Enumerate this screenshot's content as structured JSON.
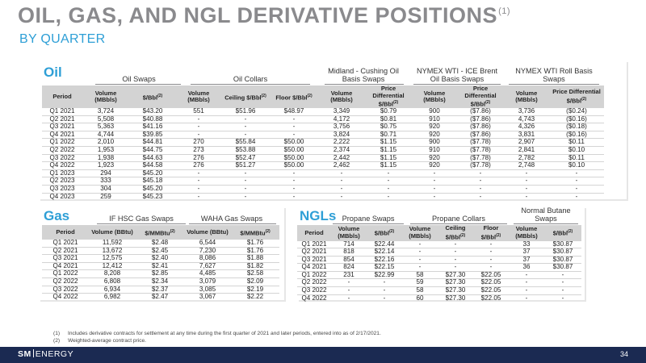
{
  "page": {
    "title": "OIL, GAS, AND NGL DERIVATIVE POSITIONS",
    "title_sup": "(1)",
    "subtitle": "BY QUARTER",
    "page_number": "34",
    "logo": {
      "sm": "SM",
      "energy": "ENERGY"
    }
  },
  "oil": {
    "label": "Oil",
    "groups": [
      "Oil Swaps",
      "Oil Collars",
      "Midland - Cushing Oil Basis Swaps",
      "NYMEX WTI - ICE Brent Oil Basis Swaps",
      "NYMEX WTI Roll Basis Swaps"
    ],
    "columns": [
      {
        "label": "Period"
      },
      {
        "label": "Volume (MBbls)"
      },
      {
        "label": "$/Bbl",
        "sup": "(2)"
      },
      {
        "label": "Volume (MBbls)"
      },
      {
        "label": "Ceiling $/Bbl",
        "sup": "(2)"
      },
      {
        "label": "Floor $/Bbl",
        "sup": "(2)"
      },
      {
        "label": "Volume (MBbls)"
      },
      {
        "label": "Price Differential $/Bbl",
        "sup": "(2)"
      },
      {
        "label": "Volume (MBbls)"
      },
      {
        "label": "Price Differential $/Bbl",
        "sup": "(2)"
      },
      {
        "label": "Volume (MBbls)"
      },
      {
        "label": "Price Differential $/Bbl",
        "sup": "(2)"
      }
    ],
    "rows": [
      [
        "Q1 2021",
        "3,724",
        "$43.20",
        "551",
        "$51.96",
        "$48.97",
        "3,349",
        "$0.79",
        "900",
        "($7.86)",
        "3,736",
        "($0.24)"
      ],
      [
        "Q2 2021",
        "5,508",
        "$40.88",
        "-",
        "-",
        "-",
        "4,172",
        "$0.81",
        "910",
        "($7.86)",
        "4,743",
        "($0.16)"
      ],
      [
        "Q3 2021",
        "5,363",
        "$41.16",
        "-",
        "-",
        "-",
        "3,756",
        "$0.75",
        "920",
        "($7.86)",
        "4,326",
        "($0.18)"
      ],
      [
        "Q4 2021",
        "4,744",
        "$39.85",
        "-",
        "-",
        "-",
        "3,824",
        "$0.71",
        "920",
        "($7.86)",
        "3,831",
        "($0.16)"
      ],
      [
        "Q1 2022",
        "2,010",
        "$44.81",
        "270",
        "$55.84",
        "$50.00",
        "2,222",
        "$1.15",
        "900",
        "($7.78)",
        "2,907",
        "$0.11"
      ],
      [
        "Q2 2022",
        "1,953",
        "$44.75",
        "273",
        "$53.88",
        "$50.00",
        "2,374",
        "$1.15",
        "910",
        "($7.78)",
        "2,841",
        "$0.10"
      ],
      [
        "Q3 2022",
        "1,938",
        "$44.63",
        "276",
        "$52.47",
        "$50.00",
        "2,442",
        "$1.15",
        "920",
        "($7.78)",
        "2,782",
        "$0.11"
      ],
      [
        "Q4 2022",
        "1,923",
        "$44.58",
        "276",
        "$51.27",
        "$50.00",
        "2,462",
        "$1.15",
        "920",
        "($7.78)",
        "2,748",
        "$0.10"
      ],
      [
        "Q1 2023",
        "294",
        "$45.20",
        "-",
        "-",
        "-",
        "-",
        "-",
        "-",
        "-",
        "-",
        "-"
      ],
      [
        "Q2 2023",
        "333",
        "$45.18",
        "-",
        "-",
        "-",
        "-",
        "-",
        "-",
        "-",
        "-",
        "-"
      ],
      [
        "Q3 2023",
        "304",
        "$45.20",
        "-",
        "-",
        "-",
        "-",
        "-",
        "-",
        "-",
        "-",
        "-"
      ],
      [
        "Q4 2023",
        "259",
        "$45.23",
        "-",
        "-",
        "-",
        "-",
        "-",
        "-",
        "-",
        "-",
        "-"
      ]
    ]
  },
  "gas": {
    "label": "Gas",
    "groups": [
      "IF HSC Gas Swaps",
      "WAHA Gas Swaps"
    ],
    "columns": [
      {
        "label": "Period"
      },
      {
        "label": "Volume (BBtu)"
      },
      {
        "label": "$/MMBtu",
        "sup": "(2)"
      },
      {
        "label": "Volume (BBtu)"
      },
      {
        "label": "$/MMBtu",
        "sup": "(2)"
      }
    ],
    "rows": [
      [
        "Q1 2021",
        "11,592",
        "$2.48",
        "6,544",
        "$1.76"
      ],
      [
        "Q2 2021",
        "13,672",
        "$2.45",
        "7,230",
        "$1.76"
      ],
      [
        "Q3 2021",
        "12,575",
        "$2.40",
        "8,086",
        "$1.88"
      ],
      [
        "Q4 2021",
        "12,412",
        "$2.41",
        "7,627",
        "$1.82"
      ],
      [
        "Q1 2022",
        "8,208",
        "$2.85",
        "4,485",
        "$2.58"
      ],
      [
        "Q2 2022",
        "6,808",
        "$2.34",
        "3,079",
        "$2.09"
      ],
      [
        "Q3 2022",
        "6,934",
        "$2.37",
        "3,085",
        "$2.19"
      ],
      [
        "Q4 2022",
        "6,982",
        "$2.47",
        "3,067",
        "$2.22"
      ]
    ]
  },
  "ngl": {
    "label": "NGLs",
    "groups": [
      "Propane Swaps",
      "Propane Collars",
      "Normal Butane Swaps"
    ],
    "columns": [
      {
        "label": "Period"
      },
      {
        "label": "Volume (MBbls)"
      },
      {
        "label": "$/Bbl",
        "sup": "(2)"
      },
      {
        "label": "Volume (MBbls)"
      },
      {
        "label": "Ceiling $/Bbl",
        "sup": "(2)"
      },
      {
        "label": "Floor $/Bbl",
        "sup": "(2)"
      },
      {
        "label": "Volume (MBbls)"
      },
      {
        "label": "$/Bbl",
        "sup": "(2)"
      }
    ],
    "rows": [
      [
        "Q1 2021",
        "714",
        "$22.44",
        "-",
        "-",
        "-",
        "33",
        "$30.87"
      ],
      [
        "Q2 2021",
        "818",
        "$22.14",
        "-",
        "-",
        "-",
        "37",
        "$30.87"
      ],
      [
        "Q3 2021",
        "854",
        "$22.16",
        "-",
        "-",
        "-",
        "37",
        "$30.87"
      ],
      [
        "Q4 2021",
        "824",
        "$22.15",
        "-",
        "-",
        "-",
        "36",
        "$30.87"
      ],
      [
        "Q1 2022",
        "231",
        "$22.99",
        "58",
        "$27.30",
        "$22.05",
        "-",
        "-"
      ],
      [
        "Q2 2022",
        "-",
        "-",
        "59",
        "$27.30",
        "$22.05",
        "-",
        "-"
      ],
      [
        "Q3 2022",
        "-",
        "-",
        "58",
        "$27.30",
        "$22.05",
        "-",
        "-"
      ],
      [
        "Q4 2022",
        "-",
        "-",
        "60",
        "$27.30",
        "$22.05",
        "-",
        "-"
      ]
    ]
  },
  "footnotes": [
    {
      "mark": "(1)",
      "text": "Includes derivative contracts for settlement at any time during the first quarter of 2021 and later periods, entered into as of 2/17/2021."
    },
    {
      "mark": "(2)",
      "text": "Weighted-average contract price."
    }
  ]
}
